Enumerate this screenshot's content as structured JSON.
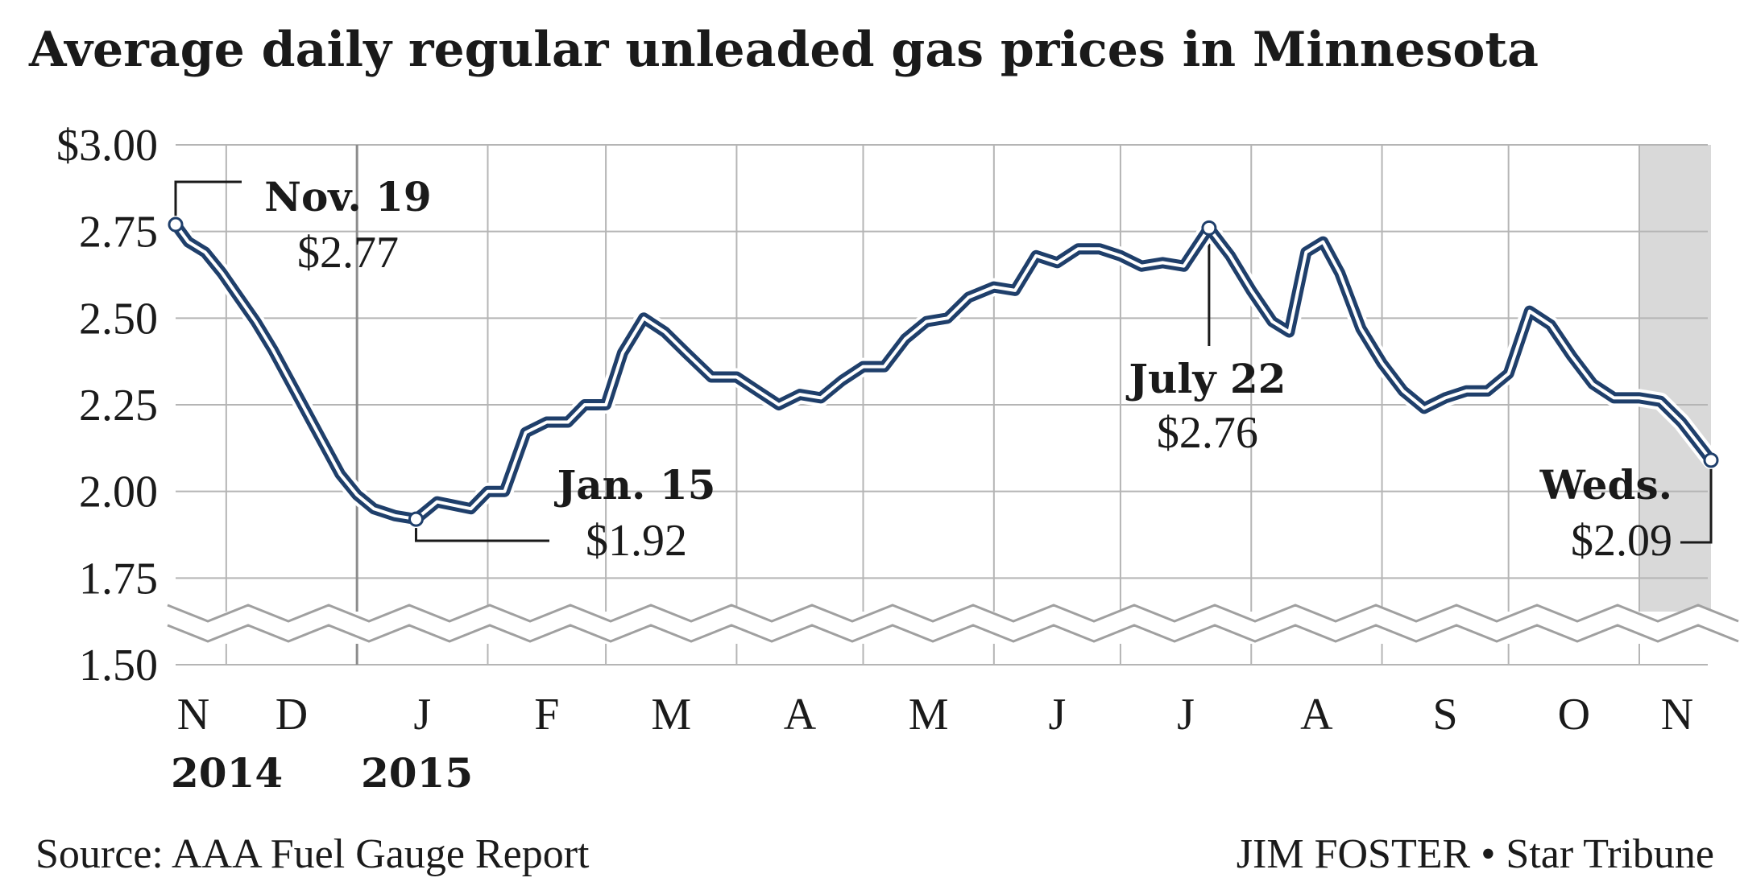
{
  "chart_data": {
    "type": "line",
    "title": "Average daily regular unleaded gas prices in Minnesota",
    "xlabel": "",
    "ylabel": "",
    "ylim": [
      1.5,
      3.0
    ],
    "axis_break": "between 1.50 and 1.75",
    "grid": true,
    "y_ticks": [
      {
        "value": 3.0,
        "label": "$3.00"
      },
      {
        "value": 2.75,
        "label": "2.75"
      },
      {
        "value": 2.5,
        "label": "2.50"
      },
      {
        "value": 2.25,
        "label": "2.25"
      },
      {
        "value": 2.0,
        "label": "2.00"
      },
      {
        "value": 1.75,
        "label": "1.75"
      },
      {
        "value": 1.5,
        "label": "1.50"
      }
    ],
    "x_ticks": [
      "N",
      "D",
      "J",
      "F",
      "M",
      "A",
      "M",
      "J",
      "J",
      "A",
      "S",
      "O",
      "N"
    ],
    "x_years": [
      "2014",
      "2015"
    ],
    "shaded_period": "N",
    "series": [
      {
        "color": "#1f3f6b",
        "x": [
          "2014-11-19",
          "2014-11-22",
          "2014-11-26",
          "2014-11-30",
          "2014-12-04",
          "2014-12-08",
          "2014-12-12",
          "2014-12-16",
          "2014-12-20",
          "2014-12-24",
          "2014-12-28",
          "2015-01-01",
          "2015-01-05",
          "2015-01-10",
          "2015-01-15",
          "2015-01-20",
          "2015-01-24",
          "2015-01-28",
          "2015-02-01",
          "2015-02-05",
          "2015-02-10",
          "2015-02-15",
          "2015-02-20",
          "2015-02-24",
          "2015-03-01",
          "2015-03-05",
          "2015-03-10",
          "2015-03-15",
          "2015-03-20",
          "2015-03-26",
          "2015-04-01",
          "2015-04-06",
          "2015-04-11",
          "2015-04-16",
          "2015-04-21",
          "2015-04-26",
          "2015-05-01",
          "2015-05-06",
          "2015-05-11",
          "2015-05-16",
          "2015-05-21",
          "2015-05-26",
          "2015-06-01",
          "2015-06-06",
          "2015-06-11",
          "2015-06-16",
          "2015-06-21",
          "2015-06-26",
          "2015-07-01",
          "2015-07-06",
          "2015-07-11",
          "2015-07-16",
          "2015-07-22",
          "2015-07-27",
          "2015-08-01",
          "2015-08-06",
          "2015-08-10",
          "2015-08-14",
          "2015-08-18",
          "2015-08-22",
          "2015-08-27",
          "2015-09-01",
          "2015-09-06",
          "2015-09-11",
          "2015-09-16",
          "2015-09-21",
          "2015-09-26",
          "2015-10-01",
          "2015-10-06",
          "2015-10-11",
          "2015-10-16",
          "2015-10-21",
          "2015-10-26",
          "2015-11-01",
          "2015-11-06",
          "2015-11-11",
          "2015-11-18"
        ],
        "values": [
          2.77,
          2.72,
          2.69,
          2.63,
          2.56,
          2.49,
          2.41,
          2.32,
          2.23,
          2.14,
          2.05,
          1.99,
          1.95,
          1.93,
          1.92,
          1.97,
          1.96,
          1.95,
          2.0,
          2.0,
          2.17,
          2.2,
          2.2,
          2.25,
          2.25,
          2.4,
          2.5,
          2.46,
          2.4,
          2.33,
          2.33,
          2.29,
          2.25,
          2.28,
          2.27,
          2.32,
          2.36,
          2.36,
          2.44,
          2.49,
          2.5,
          2.56,
          2.59,
          2.58,
          2.68,
          2.66,
          2.7,
          2.7,
          2.68,
          2.65,
          2.66,
          2.65,
          2.76,
          2.68,
          2.58,
          2.49,
          2.46,
          2.69,
          2.72,
          2.63,
          2.47,
          2.37,
          2.29,
          2.24,
          2.27,
          2.29,
          2.29,
          2.34,
          2.52,
          2.48,
          2.39,
          2.31,
          2.27,
          2.27,
          2.26,
          2.2,
          2.09
        ]
      }
    ],
    "annotations": [
      {
        "date": "2014-11-19",
        "value": 2.77,
        "label": "Nov. 19",
        "price": "$2.77"
      },
      {
        "date": "2015-01-15",
        "value": 1.92,
        "label": "Jan. 15",
        "price": "$1.92"
      },
      {
        "date": "2015-07-22",
        "value": 2.76,
        "label": "July 22",
        "price": "$2.76"
      },
      {
        "date": "2015-11-18",
        "value": 2.09,
        "label": "Weds.",
        "price": "$2.09"
      }
    ]
  },
  "footer": {
    "source": "Source: AAA Fuel Gauge Report",
    "credit": "JIM FOSTER • Star Tribune"
  }
}
